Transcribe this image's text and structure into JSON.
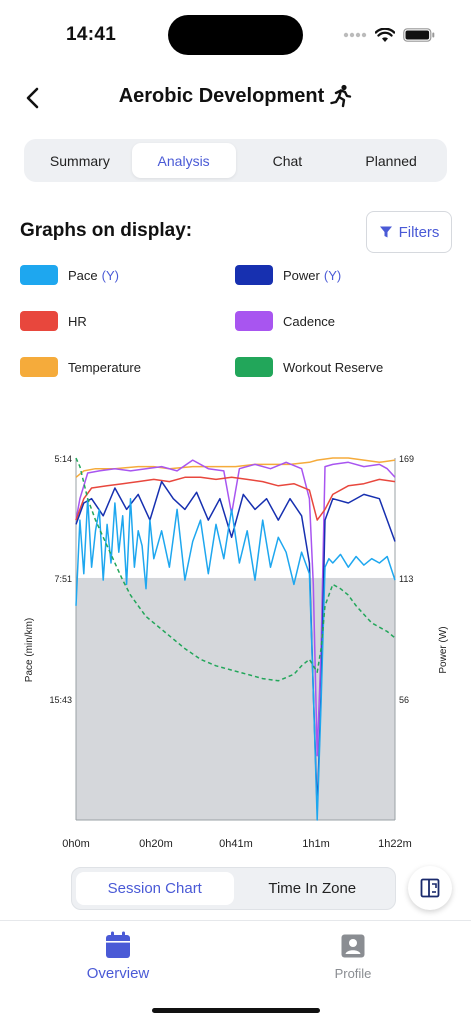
{
  "status_bar": {
    "time": "14:41"
  },
  "header": {
    "title": "Aerobic Development",
    "back_icon": "chevron-left-icon",
    "activity_icon": "running-icon"
  },
  "tabs": [
    {
      "label": "Summary",
      "active": false
    },
    {
      "label": "Analysis",
      "active": true
    },
    {
      "label": "Chat",
      "active": false
    },
    {
      "label": "Planned",
      "active": false
    }
  ],
  "graphs": {
    "title": "Graphs on display:",
    "filters_label": "Filters",
    "legend": [
      {
        "label": "Pace",
        "axis": "(Y)",
        "color": "#1ea7ef"
      },
      {
        "label": "Power",
        "axis": "(Y)",
        "color": "#1730b0"
      },
      {
        "label": "HR",
        "axis": "",
        "color": "#e8473d"
      },
      {
        "label": "Cadence",
        "axis": "",
        "color": "#a855f0"
      },
      {
        "label": "Temperature",
        "axis": "",
        "color": "#f5ab3b"
      },
      {
        "label": "Workout Reserve",
        "axis": "",
        "color": "#22a65a"
      }
    ]
  },
  "chart_data": {
    "type": "line",
    "ylabel_left": "Pace (min/km)",
    "ylabel_right": "Power (W)",
    "left_ticks": [
      "5:14",
      "7:51",
      "15:43"
    ],
    "right_ticks": [
      "169",
      "113",
      "56"
    ],
    "x_ticks": [
      "0h0m",
      "0h20m",
      "0h41m",
      "1h1m",
      "1h22m"
    ],
    "x_range_minutes": [
      0,
      82
    ],
    "right_axis_range": [
      0,
      169
    ],
    "shaded_band": {
      "from_power": 0,
      "to_power": 113
    },
    "series": [
      {
        "name": "Temperature",
        "color": "#f5ab3b",
        "style": "solid",
        "x": [
          0,
          2,
          5,
          10,
          16,
          20,
          24,
          30,
          36,
          41,
          46,
          50,
          55,
          60,
          62,
          66,
          70,
          74,
          78,
          82
        ],
        "y": [
          160,
          163,
          164,
          164,
          165,
          165,
          164,
          165,
          165,
          165,
          166,
          166,
          166,
          167,
          168,
          169,
          169,
          168,
          167,
          168
        ]
      },
      {
        "name": "Cadence",
        "color": "#a855f0",
        "style": "solid",
        "x": [
          0,
          1,
          3,
          6,
          10,
          14,
          18,
          22,
          26,
          30,
          34,
          38,
          40,
          42,
          46,
          50,
          54,
          58,
          60,
          61,
          62,
          63,
          64,
          66,
          70,
          74,
          78,
          80,
          82
        ],
        "y": [
          140,
          150,
          162,
          163,
          164,
          163,
          164,
          165,
          163,
          168,
          164,
          163,
          143,
          164,
          166,
          164,
          167,
          164,
          150,
          110,
          30,
          80,
          165,
          166,
          167,
          165,
          166,
          164,
          160
        ]
      },
      {
        "name": "HR",
        "color": "#e8473d",
        "style": "solid",
        "x": [
          0,
          2,
          4,
          8,
          12,
          16,
          20,
          24,
          28,
          32,
          36,
          40,
          44,
          48,
          52,
          56,
          60,
          62,
          64,
          66,
          70,
          74,
          78,
          82
        ],
        "y": [
          140,
          150,
          155,
          156,
          157,
          158,
          159,
          158,
          160,
          160,
          159,
          160,
          159,
          158,
          156,
          157,
          154,
          140,
          145,
          152,
          156,
          157,
          159,
          158
        ]
      },
      {
        "name": "Power",
        "color": "#1730b0",
        "style": "solid",
        "x": [
          0,
          2,
          4,
          7,
          10,
          13,
          16,
          19,
          22,
          25,
          28,
          31,
          34,
          37,
          40,
          43,
          46,
          49,
          52,
          55,
          58,
          60,
          61,
          62,
          63,
          64,
          66,
          70,
          74,
          78,
          82
        ],
        "y": [
          138,
          148,
          150,
          142,
          155,
          145,
          152,
          140,
          158,
          150,
          145,
          153,
          140,
          150,
          132,
          152,
          145,
          150,
          140,
          150,
          142,
          120,
          60,
          5,
          60,
          140,
          150,
          148,
          152,
          150,
          130
        ]
      },
      {
        "name": "Pace",
        "color": "#1ea7ef",
        "style": "solid",
        "x": [
          0,
          1,
          2,
          3,
          4,
          5,
          6,
          7,
          8,
          9,
          10,
          11,
          12,
          13,
          14,
          15,
          16,
          17,
          18,
          19,
          20,
          22,
          24,
          26,
          28,
          30,
          32,
          34,
          36,
          38,
          40,
          42,
          44,
          46,
          48,
          50,
          52,
          54,
          56,
          58,
          60,
          61,
          62,
          63,
          64,
          65,
          66,
          68,
          70,
          72,
          74,
          76,
          78,
          80,
          82
        ],
        "y": [
          100,
          140,
          115,
          150,
          118,
          135,
          145,
          112,
          138,
          120,
          148,
          125,
          142,
          110,
          150,
          118,
          135,
          128,
          108,
          140,
          122,
          135,
          118,
          145,
          112,
          130,
          140,
          115,
          138,
          122,
          145,
          120,
          135,
          112,
          140,
          118,
          132,
          125,
          110,
          125,
          115,
          60,
          0,
          55,
          118,
          122,
          120,
          124,
          118,
          123,
          119,
          122,
          120,
          123,
          112
        ]
      },
      {
        "name": "Workout Reserve",
        "color": "#22a65a",
        "style": "dashed",
        "x": [
          0,
          1,
          3,
          5,
          8,
          10,
          12,
          14,
          16,
          18,
          20,
          24,
          28,
          32,
          36,
          40,
          44,
          48,
          52,
          56,
          58,
          60,
          61,
          62,
          63,
          64,
          66,
          68,
          70,
          72,
          74,
          76,
          78,
          80,
          82
        ],
        "y": [
          169,
          165,
          150,
          140,
          128,
          120,
          112,
          105,
          100,
          95,
          92,
          86,
          80,
          75,
          72,
          70,
          68,
          66,
          65,
          68,
          72,
          75,
          72,
          69,
          80,
          100,
          110,
          108,
          105,
          100,
          96,
          92,
          90,
          88,
          85
        ]
      }
    ]
  },
  "chart_toggle": {
    "options": [
      "Session Chart",
      "Time In Zone"
    ],
    "active": 0
  },
  "fab": {
    "icon": "expand-chart-icon"
  },
  "bottom_nav": [
    {
      "label": "Overview",
      "icon": "calendar-icon",
      "active": true
    },
    {
      "label": "Profile",
      "icon": "profile-icon",
      "active": false
    }
  ]
}
